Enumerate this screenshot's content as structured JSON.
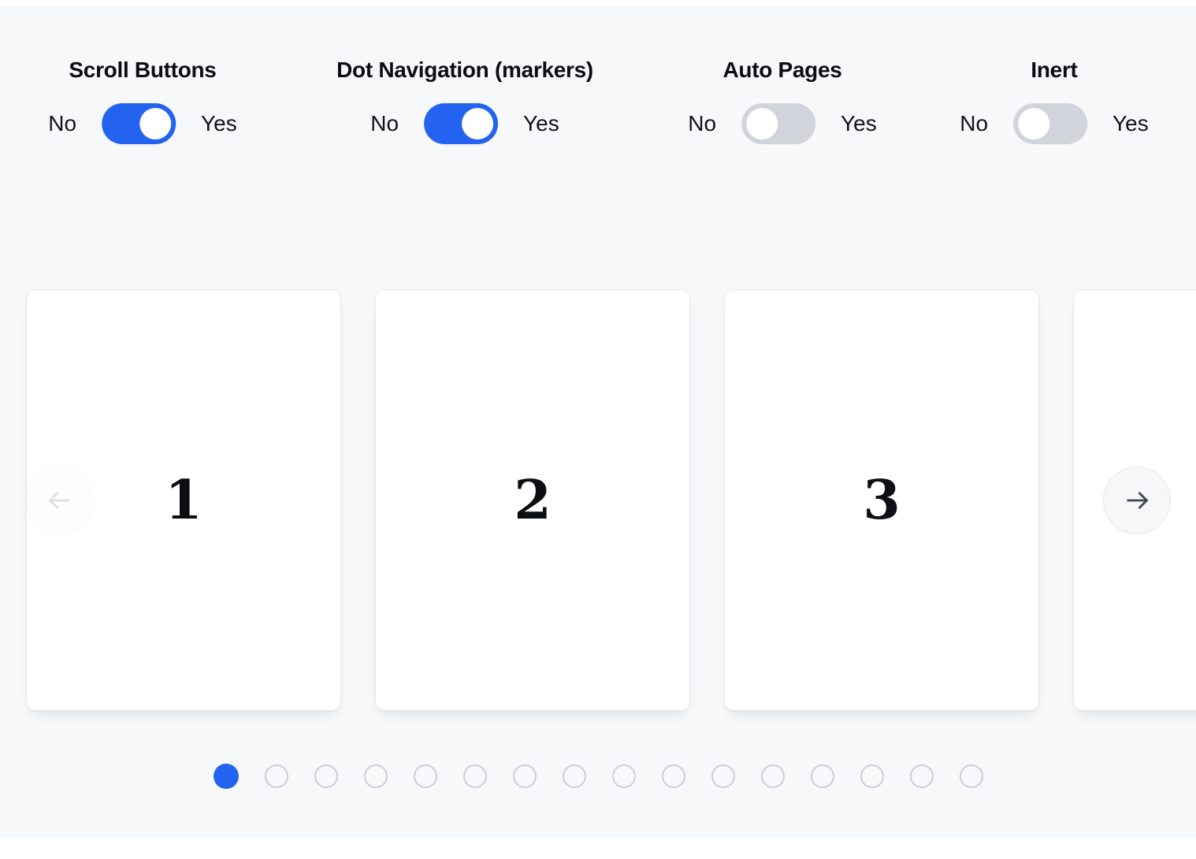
{
  "colors": {
    "accent": "#2363ef",
    "toggle_off_track": "#d1d5db",
    "page_background": "#f7f8fa"
  },
  "controls": [
    {
      "label": "Scroll Buttons",
      "no_label": "No",
      "yes_label": "Yes",
      "enabled": true
    },
    {
      "label": "Dot Navigation (markers)",
      "no_label": "No",
      "yes_label": "Yes",
      "enabled": true
    },
    {
      "label": "Auto Pages",
      "no_label": "No",
      "yes_label": "Yes",
      "enabled": false
    },
    {
      "label": "Inert",
      "no_label": "No",
      "yes_label": "Yes",
      "enabled": false
    }
  ],
  "carousel": {
    "slides": [
      {
        "number": "1"
      },
      {
        "number": "2"
      },
      {
        "number": "3"
      },
      {
        "number": ""
      }
    ],
    "prev_button": {
      "icon": "arrow-left-icon",
      "disabled": true
    },
    "next_button": {
      "icon": "arrow-right-icon",
      "disabled": false
    },
    "dots": {
      "count": 16,
      "active_index": 0
    }
  }
}
